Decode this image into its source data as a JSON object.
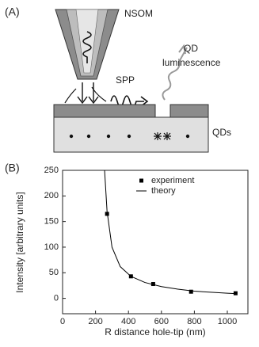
{
  "panel_a": {
    "label": "(A)",
    "nsom": "NSOM",
    "spp": "SPP",
    "qd": "QD",
    "luminescence": "luminescence",
    "qds": "QDs"
  },
  "chart_data": {
    "type": "scatter",
    "panel_label": "(B)",
    "x_label": "R   distance hole-tip (nm)",
    "y_label": "Intensity [arbitrary units]",
    "xlim": [
      0,
      1125
    ],
    "ylim": [
      -30,
      250
    ],
    "xticks": [
      0,
      200,
      400,
      600,
      800,
      1000
    ],
    "yticks": [
      0,
      50,
      100,
      150,
      200,
      250
    ],
    "legend": "top-right",
    "series": [
      {
        "name": "experiment",
        "color": "#000000",
        "style": "markers",
        "x": [
          270,
          415,
          550,
          780,
          1050
        ],
        "values": [
          165,
          43,
          28,
          13,
          10
        ]
      },
      {
        "name": "theory",
        "color": "#000000",
        "style": "line",
        "x": [
          255,
          270,
          300,
          350,
          415,
          500,
          600,
          700,
          800,
          900,
          1000,
          1060
        ],
        "values": [
          250,
          170,
          100,
          62,
          43,
          31,
          23,
          18,
          14,
          12,
          10,
          9
        ]
      }
    ]
  }
}
